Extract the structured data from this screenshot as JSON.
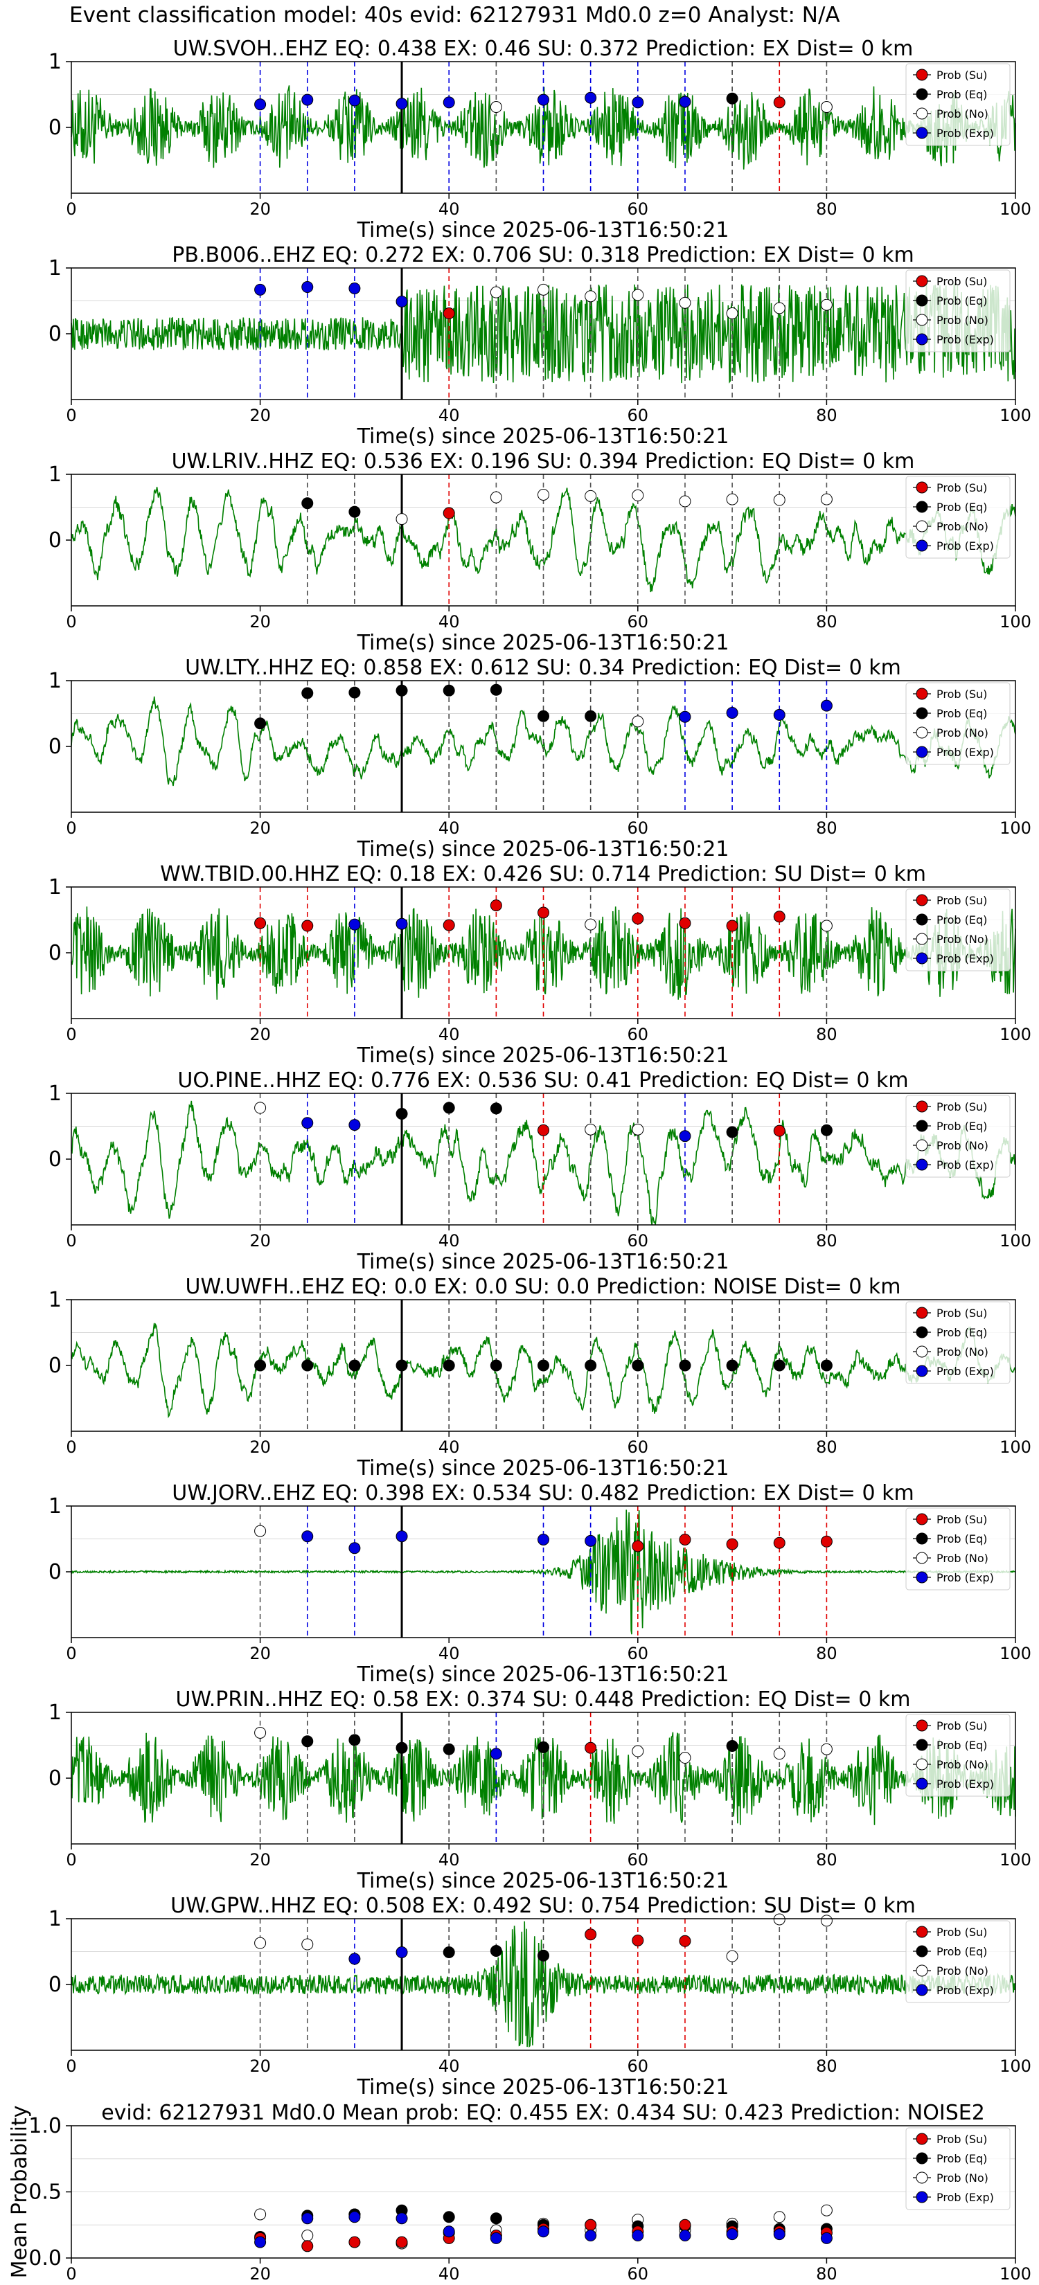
{
  "figure": {
    "suptitle": "Event classification model: 40s evid: 62127931 Md0.0 z=0 Analyst: N/A"
  },
  "chart_data": {
    "type": "scatter",
    "xlabel": "Time(s) since 2025-06-13T16:50:21",
    "xlim": [
      0,
      100
    ],
    "xticks": [
      "0",
      "20",
      "40",
      "60",
      "80",
      "100"
    ],
    "ylim": [
      -1,
      1
    ],
    "yticks": [
      "1",
      "0"
    ],
    "window_starts": [
      20,
      25,
      30,
      35,
      40,
      45,
      50,
      55,
      60,
      65,
      70,
      75,
      80
    ],
    "origin_time_line": 35,
    "legend": {
      "placement": "top-right",
      "entries": [
        {
          "label": "Prob (Su)",
          "color": "#e00000",
          "fill": true
        },
        {
          "label": "Prob (Eq)",
          "color": "#000000",
          "fill": true
        },
        {
          "label": "Prob (No)",
          "color": "#ffffff",
          "fill": false
        },
        {
          "label": "Prob (Exp)",
          "color": "#0000e0",
          "fill": true
        }
      ]
    },
    "colors": {
      "su": "#e00000",
      "eq": "#000000",
      "no": "#ffffff",
      "exp": "#0000e0",
      "trace": "#008000"
    },
    "panels": [
      {
        "title": "UW.SVOH..EHZ   EQ: 0.438  EX: 0.46  SU: 0.372   Prediction: EX    Dist= 0 km",
        "wave": "noisy",
        "amp": 0.55,
        "points": [
          {
            "t": 20,
            "p": 0.35,
            "c": "exp"
          },
          {
            "t": 25,
            "p": 0.42,
            "c": "exp"
          },
          {
            "t": 30,
            "p": 0.41,
            "c": "exp"
          },
          {
            "t": 35,
            "p": 0.36,
            "c": "exp"
          },
          {
            "t": 40,
            "p": 0.38,
            "c": "exp"
          },
          {
            "t": 45,
            "p": 0.31,
            "c": "no"
          },
          {
            "t": 50,
            "p": 0.42,
            "c": "exp"
          },
          {
            "t": 55,
            "p": 0.45,
            "c": "exp"
          },
          {
            "t": 60,
            "p": 0.38,
            "c": "exp"
          },
          {
            "t": 65,
            "p": 0.39,
            "c": "exp"
          },
          {
            "t": 70,
            "p": 0.44,
            "c": "eq"
          },
          {
            "t": 75,
            "p": 0.38,
            "c": "su"
          },
          {
            "t": 80,
            "p": 0.31,
            "c": "no"
          }
        ]
      },
      {
        "title": "PB.B006..EHZ   EQ: 0.272  EX: 0.706  SU: 0.318   Prediction: EX    Dist= 0 km",
        "wave": "burst",
        "amp": 0.5,
        "points": [
          {
            "t": 20,
            "p": 0.67,
            "c": "exp"
          },
          {
            "t": 25,
            "p": 0.71,
            "c": "exp"
          },
          {
            "t": 30,
            "p": 0.69,
            "c": "exp"
          },
          {
            "t": 35,
            "p": 0.49,
            "c": "exp"
          },
          {
            "t": 40,
            "p": 0.31,
            "c": "su"
          },
          {
            "t": 45,
            "p": 0.63,
            "c": "no"
          },
          {
            "t": 50,
            "p": 0.67,
            "c": "no"
          },
          {
            "t": 55,
            "p": 0.57,
            "c": "no"
          },
          {
            "t": 60,
            "p": 0.59,
            "c": "no"
          },
          {
            "t": 65,
            "p": 0.47,
            "c": "no"
          },
          {
            "t": 70,
            "p": 0.31,
            "c": "no"
          },
          {
            "t": 75,
            "p": 0.39,
            "c": "no"
          },
          {
            "t": 80,
            "p": 0.44,
            "c": "no"
          }
        ]
      },
      {
        "title": "UW.LRIV..HHZ   EQ: 0.536  EX: 0.196  SU: 0.394   Prediction: EQ    Dist= 0 km",
        "wave": "smooth",
        "amp": 0.7,
        "points": [
          {
            "t": 25,
            "p": 0.56,
            "c": "eq"
          },
          {
            "t": 30,
            "p": 0.43,
            "c": "eq"
          },
          {
            "t": 35,
            "p": 0.32,
            "c": "no"
          },
          {
            "t": 40,
            "p": 0.41,
            "c": "su"
          },
          {
            "t": 45,
            "p": 0.65,
            "c": "no"
          },
          {
            "t": 50,
            "p": 0.69,
            "c": "no"
          },
          {
            "t": 55,
            "p": 0.67,
            "c": "no"
          },
          {
            "t": 60,
            "p": 0.68,
            "c": "no"
          },
          {
            "t": 65,
            "p": 0.59,
            "c": "no"
          },
          {
            "t": 70,
            "p": 0.62,
            "c": "no"
          },
          {
            "t": 75,
            "p": 0.61,
            "c": "no"
          },
          {
            "t": 80,
            "p": 0.62,
            "c": "no"
          }
        ]
      },
      {
        "title": "UW.LTY..HHZ   EQ: 0.858  EX: 0.612  SU: 0.34   Prediction: EQ    Dist= 0 km",
        "wave": "smooth",
        "amp": 0.55,
        "points": [
          {
            "t": 20,
            "p": 0.35,
            "c": "eq"
          },
          {
            "t": 25,
            "p": 0.81,
            "c": "eq"
          },
          {
            "t": 30,
            "p": 0.82,
            "c": "eq"
          },
          {
            "t": 35,
            "p": 0.85,
            "c": "eq"
          },
          {
            "t": 40,
            "p": 0.85,
            "c": "eq"
          },
          {
            "t": 45,
            "p": 0.86,
            "c": "eq"
          },
          {
            "t": 50,
            "p": 0.46,
            "c": "eq"
          },
          {
            "t": 55,
            "p": 0.46,
            "c": "eq"
          },
          {
            "t": 60,
            "p": 0.38,
            "c": "no"
          },
          {
            "t": 65,
            "p": 0.45,
            "c": "exp"
          },
          {
            "t": 70,
            "p": 0.51,
            "c": "exp"
          },
          {
            "t": 75,
            "p": 0.48,
            "c": "exp"
          },
          {
            "t": 80,
            "p": 0.62,
            "c": "exp"
          }
        ]
      },
      {
        "title": "WW.TBID.00.HHZ   EQ: 0.18  EX: 0.426  SU: 0.714   Prediction: SU    Dist= 0 km",
        "wave": "noisy",
        "amp": 0.6,
        "points": [
          {
            "t": 20,
            "p": 0.45,
            "c": "su"
          },
          {
            "t": 25,
            "p": 0.41,
            "c": "su"
          },
          {
            "t": 30,
            "p": 0.43,
            "c": "exp"
          },
          {
            "t": 35,
            "p": 0.44,
            "c": "exp"
          },
          {
            "t": 40,
            "p": 0.42,
            "c": "su"
          },
          {
            "t": 45,
            "p": 0.72,
            "c": "su"
          },
          {
            "t": 50,
            "p": 0.61,
            "c": "su"
          },
          {
            "t": 55,
            "p": 0.43,
            "c": "no"
          },
          {
            "t": 60,
            "p": 0.52,
            "c": "su"
          },
          {
            "t": 65,
            "p": 0.45,
            "c": "su"
          },
          {
            "t": 70,
            "p": 0.41,
            "c": "su"
          },
          {
            "t": 75,
            "p": 0.55,
            "c": "su"
          },
          {
            "t": 80,
            "p": 0.41,
            "c": "no"
          }
        ]
      },
      {
        "title": "UO.PINE..HHZ   EQ: 0.776  EX: 0.536  SU: 0.41   Prediction: EQ    Dist= 0 km",
        "wave": "smooth",
        "amp": 0.75,
        "points": [
          {
            "t": 20,
            "p": 0.78,
            "c": "no"
          },
          {
            "t": 25,
            "p": 0.55,
            "c": "exp"
          },
          {
            "t": 30,
            "p": 0.52,
            "c": "exp"
          },
          {
            "t": 35,
            "p": 0.69,
            "c": "eq"
          },
          {
            "t": 40,
            "p": 0.78,
            "c": "eq"
          },
          {
            "t": 45,
            "p": 0.77,
            "c": "eq"
          },
          {
            "t": 50,
            "p": 0.44,
            "c": "su"
          },
          {
            "t": 55,
            "p": 0.45,
            "c": "no"
          },
          {
            "t": 60,
            "p": 0.45,
            "c": "no"
          },
          {
            "t": 65,
            "p": 0.35,
            "c": "exp"
          },
          {
            "t": 70,
            "p": 0.41,
            "c": "eq"
          },
          {
            "t": 75,
            "p": 0.43,
            "c": "su"
          },
          {
            "t": 80,
            "p": 0.44,
            "c": "eq"
          }
        ]
      },
      {
        "title": "UW.UWFH..EHZ   EQ: 0.0  EX: 0.0  SU: 0.0   Prediction: NOISE    Dist= 0 km",
        "wave": "smooth",
        "amp": 0.6,
        "points": [
          {
            "t": 20,
            "p": 0.0,
            "c": "eq"
          },
          {
            "t": 25,
            "p": 0.0,
            "c": "eq"
          },
          {
            "t": 30,
            "p": 0.0,
            "c": "eq"
          },
          {
            "t": 35,
            "p": 0.0,
            "c": "eq"
          },
          {
            "t": 40,
            "p": 0.0,
            "c": "eq"
          },
          {
            "t": 45,
            "p": 0.0,
            "c": "eq"
          },
          {
            "t": 50,
            "p": 0.0,
            "c": "eq"
          },
          {
            "t": 55,
            "p": 0.0,
            "c": "eq"
          },
          {
            "t": 60,
            "p": 0.0,
            "c": "eq"
          },
          {
            "t": 65,
            "p": 0.0,
            "c": "eq"
          },
          {
            "t": 70,
            "p": 0.0,
            "c": "eq"
          },
          {
            "t": 75,
            "p": 0.0,
            "c": "eq"
          },
          {
            "t": 80,
            "p": 0.0,
            "c": "eq"
          }
        ]
      },
      {
        "title": "UW.JORV..EHZ   EQ: 0.398  EX: 0.534  SU: 0.482   Prediction: EX    Dist= 0 km",
        "wave": "event",
        "amp": 0.9,
        "points": [
          {
            "t": 20,
            "p": 0.62,
            "c": "no"
          },
          {
            "t": 25,
            "p": 0.54,
            "c": "exp"
          },
          {
            "t": 30,
            "p": 0.36,
            "c": "exp"
          },
          {
            "t": 35,
            "p": 0.54,
            "c": "exp"
          },
          {
            "t": 50,
            "p": 0.49,
            "c": "exp"
          },
          {
            "t": 55,
            "p": 0.47,
            "c": "exp"
          },
          {
            "t": 60,
            "p": 0.39,
            "c": "su"
          },
          {
            "t": 65,
            "p": 0.49,
            "c": "su"
          },
          {
            "t": 70,
            "p": 0.42,
            "c": "su"
          },
          {
            "t": 75,
            "p": 0.44,
            "c": "su"
          },
          {
            "t": 80,
            "p": 0.46,
            "c": "su"
          }
        ]
      },
      {
        "title": "UW.PRIN..HHZ   EQ: 0.58  EX: 0.374  SU: 0.448   Prediction: EQ    Dist= 0 km",
        "wave": "noisy",
        "amp": 0.6,
        "points": [
          {
            "t": 20,
            "p": 0.69,
            "c": "no"
          },
          {
            "t": 25,
            "p": 0.56,
            "c": "eq"
          },
          {
            "t": 30,
            "p": 0.58,
            "c": "eq"
          },
          {
            "t": 35,
            "p": 0.46,
            "c": "eq"
          },
          {
            "t": 40,
            "p": 0.44,
            "c": "eq"
          },
          {
            "t": 45,
            "p": 0.37,
            "c": "exp"
          },
          {
            "t": 50,
            "p": 0.47,
            "c": "eq"
          },
          {
            "t": 55,
            "p": 0.46,
            "c": "su"
          },
          {
            "t": 60,
            "p": 0.41,
            "c": "no"
          },
          {
            "t": 65,
            "p": 0.31,
            "c": "no"
          },
          {
            "t": 70,
            "p": 0.49,
            "c": "eq"
          },
          {
            "t": 75,
            "p": 0.37,
            "c": "no"
          },
          {
            "t": 80,
            "p": 0.44,
            "c": "no"
          }
        ]
      },
      {
        "title": "UW.GPW..HHZ   EQ: 0.508  EX: 0.492  SU: 0.754   Prediction: SU    Dist= 0 km",
        "wave": "event2",
        "amp": 0.15,
        "points": [
          {
            "t": 20,
            "p": 0.63,
            "c": "no"
          },
          {
            "t": 25,
            "p": 0.61,
            "c": "no"
          },
          {
            "t": 30,
            "p": 0.39,
            "c": "exp"
          },
          {
            "t": 35,
            "p": 0.49,
            "c": "exp"
          },
          {
            "t": 40,
            "p": 0.49,
            "c": "eq"
          },
          {
            "t": 45,
            "p": 0.51,
            "c": "eq"
          },
          {
            "t": 50,
            "p": 0.44,
            "c": "eq"
          },
          {
            "t": 55,
            "p": 0.76,
            "c": "su"
          },
          {
            "t": 60,
            "p": 0.67,
            "c": "su"
          },
          {
            "t": 65,
            "p": 0.66,
            "c": "su"
          },
          {
            "t": 70,
            "p": 0.43,
            "c": "no"
          },
          {
            "t": 75,
            "p": 0.99,
            "c": "no"
          },
          {
            "t": 80,
            "p": 0.97,
            "c": "no"
          }
        ]
      }
    ],
    "mean_panel": {
      "title": "evid: 62127931  Md0.0   Mean prob:   EQ: 0.455  EX: 0.434  SU: 0.423   Prediction: NOISE2",
      "ylabel": "Mean Probability",
      "ylim": [
        0,
        1
      ],
      "yticks": [
        "1.0",
        "0.5",
        "0.0"
      ],
      "series": [
        {
          "key": "no",
          "values": [
            0.33,
            0.17,
            0.33,
            0.11,
            0.19,
            0.21,
            0.26,
            0.21,
            0.29,
            0.21,
            0.26,
            0.31,
            0.36
          ]
        },
        {
          "key": "eq",
          "values": [
            0.16,
            0.32,
            0.33,
            0.36,
            0.31,
            0.3,
            0.25,
            0.25,
            0.24,
            0.24,
            0.24,
            0.22,
            0.22
          ]
        },
        {
          "key": "su",
          "values": [
            0.15,
            0.09,
            0.12,
            0.12,
            0.15,
            0.17,
            0.22,
            0.25,
            0.2,
            0.25,
            0.2,
            0.2,
            0.19
          ]
        },
        {
          "key": "exp",
          "values": [
            0.12,
            0.3,
            0.31,
            0.3,
            0.2,
            0.15,
            0.2,
            0.17,
            0.17,
            0.17,
            0.18,
            0.18,
            0.15
          ]
        }
      ]
    }
  }
}
